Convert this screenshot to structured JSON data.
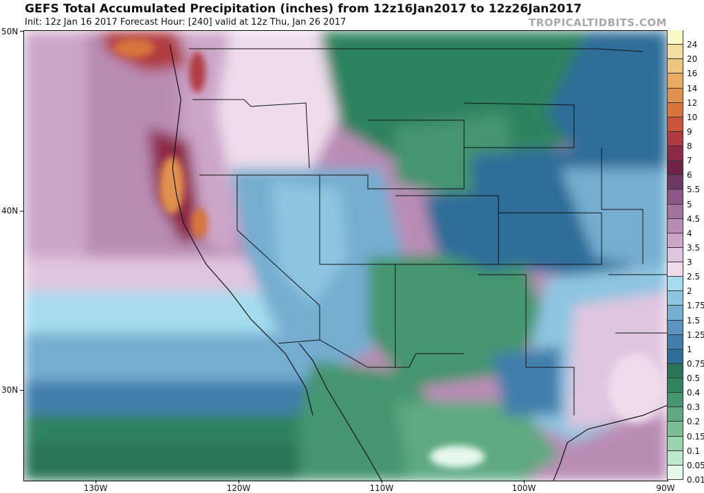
{
  "header": {
    "title": "GEFS Total Accumulated Precipitation (inches) from 12z16Jan2017 to 12z26Jan2017",
    "subtitle": "Init: 12z Jan 16 2017   Forecast Hour: [240]   valid at 12z Thu, Jan 26 2017",
    "brand": "TROPICALTIDBITS.COM"
  },
  "axes": {
    "lat_labels": [
      "50N",
      "40N",
      "30N"
    ],
    "lon_labels": [
      "130W",
      "120W",
      "110W",
      "100W",
      "90W"
    ]
  },
  "legend": {
    "labels": [
      "24",
      "20",
      "16",
      "14",
      "12",
      "10",
      "9",
      "8",
      "7",
      "6",
      "5.5",
      "5",
      "4.5",
      "4",
      "3.5",
      "3",
      "2.5",
      "2",
      "1.75",
      "1.5",
      "1.25",
      "1",
      "0.75",
      "0.5",
      "0.4",
      "0.3",
      "0.2",
      "0.15",
      "0.1",
      "0.05",
      "0.01"
    ],
    "colors": [
      "#fbf8c8",
      "#f3dea0",
      "#edc580",
      "#e7ab66",
      "#e1914f",
      "#d8743e",
      "#c9543a",
      "#b03a43",
      "#8e2a48",
      "#6f2346",
      "#6d3a63",
      "#8c5687",
      "#a4729f",
      "#b98cb5",
      "#cca6c9",
      "#e0c5df",
      "#eedcec",
      "#a6dcee",
      "#8ec5e0",
      "#74add0",
      "#5b95bf",
      "#427eac",
      "#2e6d98",
      "#2a7557",
      "#2f835e",
      "#45956e",
      "#5fa982",
      "#7cbf97",
      "#9ad4ae",
      "#bfe9ce",
      "#e6f8ec"
    ]
  },
  "map": {
    "regions": [
      {
        "name": "pacific-ocean-northwest",
        "color": "#b98cb5"
      },
      {
        "name": "pacific-coast-heavy",
        "color": "#8e2a48"
      },
      {
        "name": "interior-west",
        "color": "#74add0"
      },
      {
        "name": "northern-plains",
        "color": "#2f835e"
      },
      {
        "name": "central-plains",
        "color": "#2e6d98"
      },
      {
        "name": "gulf-coast",
        "color": "#e0c5df"
      },
      {
        "name": "mexico",
        "color": "#45956e"
      },
      {
        "name": "open-ocean-south",
        "color": "#5b95bf"
      }
    ]
  }
}
